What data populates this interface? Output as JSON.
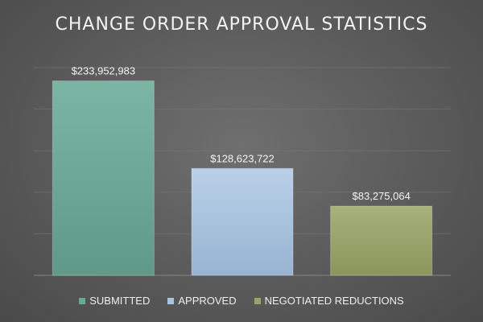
{
  "chart_data": {
    "type": "bar",
    "title": "CHANGE ORDER APPROVAL STATISTICS",
    "categories": [
      "SUBMITTED",
      "APPROVED",
      "NEGOTIATED REDUCTIONS"
    ],
    "values": [
      233952983,
      128623722,
      83275064
    ],
    "data_labels": [
      "$233,952,983",
      "$128,623,722",
      "$83,275,064"
    ],
    "ylim": [
      0,
      250000000
    ],
    "grid": true,
    "legend_position": "bottom",
    "colors": {
      "SUBMITTED": "#6aa896",
      "APPROVED": "#a9c4df",
      "NEGOTIATED REDUCTIONS": "#98a36a"
    }
  }
}
